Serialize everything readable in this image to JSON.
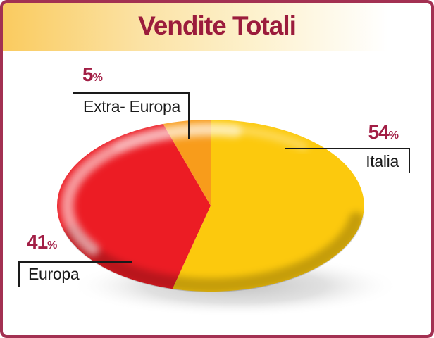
{
  "chart_data": {
    "type": "pie",
    "title": "Vendite Totali",
    "unit": "%",
    "start_angle": "top",
    "direction": "clockwise",
    "style": "3d-ellipse-with-gloss-and-shadow",
    "legend": "callout-labels",
    "slices": [
      {
        "label": "Italia",
        "value": 54,
        "color": "#FCC90D"
      },
      {
        "label": "Europa",
        "value": 41,
        "color": "#EC1C24"
      },
      {
        "label": "Extra- Europa",
        "value": 5,
        "color": "#F89C1B"
      }
    ]
  },
  "palette": {
    "frame_border": "#A33152",
    "title_text": "#9B1C3C",
    "percent_text": "#A21E45",
    "label_text": "#1A1A1A",
    "callout_line": "#1A1A1A",
    "band_gradient_start": "#FACB5F",
    "band_gradient_end": "#FFFFFF"
  }
}
